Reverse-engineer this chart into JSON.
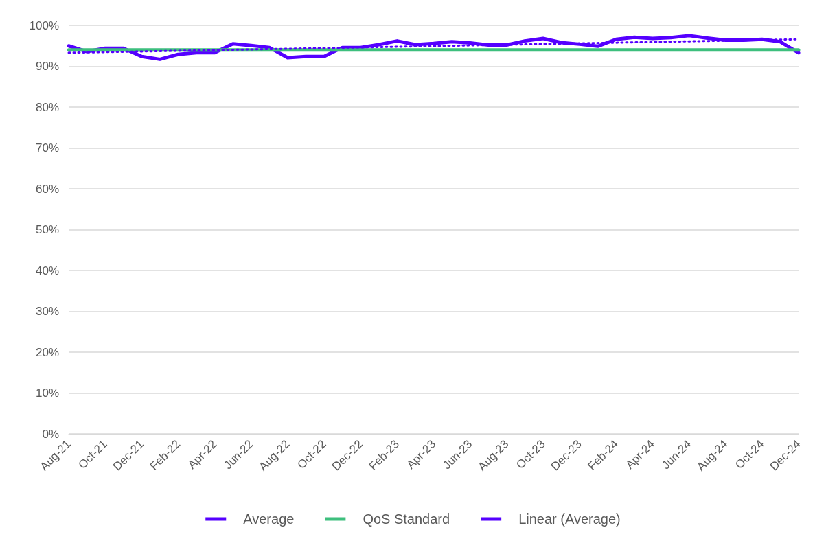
{
  "chart_data": {
    "type": "line",
    "categories": [
      "Aug-21",
      null,
      "Oct-21",
      null,
      "Dec-21",
      null,
      "Feb-22",
      null,
      "Apr-22",
      null,
      "Jun-22",
      null,
      "Aug-22",
      null,
      "Oct-22",
      null,
      "Dec-22",
      null,
      "Feb-23",
      null,
      "Apr-23",
      null,
      "Jun-23",
      null,
      "Aug-23",
      null,
      "Oct-23",
      null,
      "Dec-23",
      null,
      "Feb-24",
      null,
      "Apr-24",
      null,
      "Jun-24",
      null,
      "Aug-24",
      null,
      "Oct-24",
      null,
      "Dec-24"
    ],
    "series": [
      {
        "name": "Average",
        "color": "#5500ff",
        "line_style": "solid",
        "values": [
          95.0,
          93.6,
          94.4,
          94.4,
          92.4,
          91.7,
          92.9,
          93.3,
          93.3,
          95.5,
          95.1,
          94.6,
          92.1,
          92.4,
          92.4,
          94.6,
          94.6,
          95.3,
          96.2,
          95.3,
          95.6,
          96.0,
          95.7,
          95.2,
          95.2,
          96.2,
          96.8,
          95.8,
          95.4,
          94.9,
          96.6,
          97.1,
          96.8,
          97.0,
          97.5,
          96.9,
          96.4,
          96.4,
          96.6,
          96.0,
          93.3
        ]
      },
      {
        "name": "QoS Standard",
        "color": "#3dbf7d",
        "line_style": "solid",
        "values": [
          94,
          94,
          94,
          94,
          94,
          94,
          94,
          94,
          94,
          94,
          94,
          94,
          94,
          94,
          94,
          94,
          94,
          94,
          94,
          94,
          94,
          94,
          94,
          94,
          94,
          94,
          94,
          94,
          94,
          94,
          94,
          94,
          94,
          94,
          94,
          94,
          94,
          94,
          94,
          94,
          94
        ]
      },
      {
        "name": "Linear (Average)",
        "color": "#5500ff",
        "line_style": "dotted",
        "x": [
          "Aug-21",
          "Dec-24"
        ],
        "values": [
          93.3,
          96.6
        ]
      }
    ],
    "ylim": [
      0,
      100
    ],
    "yticks": [
      {
        "value": 0,
        "label": "0%"
      },
      {
        "value": 10,
        "label": "10%"
      },
      {
        "value": 20,
        "label": "20%"
      },
      {
        "value": 30,
        "label": "30%"
      },
      {
        "value": 40,
        "label": "40%"
      },
      {
        "value": 50,
        "label": "50%"
      },
      {
        "value": 60,
        "label": "60%"
      },
      {
        "value": 70,
        "label": "70%"
      },
      {
        "value": 80,
        "label": "80%"
      },
      {
        "value": 90,
        "label": "90%"
      },
      {
        "value": 100,
        "label": "100%"
      }
    ],
    "grid": "y",
    "legend": "bottom",
    "marker": "none"
  }
}
